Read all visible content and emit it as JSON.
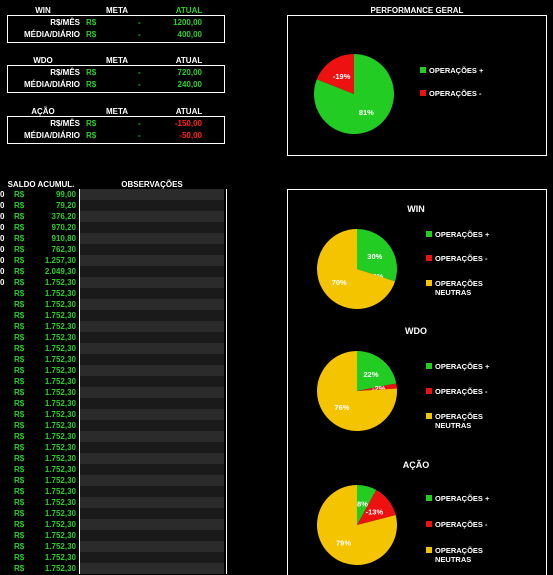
{
  "win_table": {
    "title": "WIN",
    "col_meta": "META",
    "col_atual": "ATUAL",
    "rows": [
      {
        "label": "R$/MÊS",
        "cur": "R$",
        "meta": "-",
        "atual": "1200,00"
      },
      {
        "label": "MÉDIA/DIÁRIO",
        "cur": "R$",
        "meta": "-",
        "atual": "400,00"
      }
    ]
  },
  "wdo_table": {
    "title": "WDO",
    "col_meta": "META",
    "col_atual": "ATUAL",
    "rows": [
      {
        "label": "R$/MÊS",
        "cur": "R$",
        "meta": "-",
        "atual": "720,00"
      },
      {
        "label": "MÉDIA/DIÁRIO",
        "cur": "R$",
        "meta": "-",
        "atual": "240,00"
      }
    ]
  },
  "acao_table": {
    "title": "AÇÃO",
    "col_meta": "META",
    "col_atual": "ATUAL",
    "rows": [
      {
        "label": "R$/MÊS",
        "cur": "R$",
        "meta": "-",
        "atual": "-150,00"
      },
      {
        "label": "MÉDIA/DIÁRIO",
        "cur": "R$",
        "meta": "-",
        "atual": "-50,00"
      }
    ]
  },
  "balance": {
    "header_saldo": "SALDO ACUMUL.",
    "header_obs": "OBSERVAÇÕES",
    "currency": "R$",
    "rows": [
      {
        "idx": "0",
        "value": "99,00"
      },
      {
        "idx": "0",
        "value": "79,20"
      },
      {
        "idx": "0",
        "value": "376,20"
      },
      {
        "idx": "0",
        "value": "970,20"
      },
      {
        "idx": "0",
        "value": "910,80"
      },
      {
        "idx": "0",
        "value": "762,30"
      },
      {
        "idx": "0",
        "value": "1.257,30"
      },
      {
        "idx": "0",
        "value": "2.049,30"
      },
      {
        "idx": "0",
        "value": "1.752,30"
      },
      {
        "idx": "",
        "value": "1.752,30"
      },
      {
        "idx": "",
        "value": "1.752,30"
      },
      {
        "idx": "",
        "value": "1.752,30"
      },
      {
        "idx": "",
        "value": "1.752,30"
      },
      {
        "idx": "",
        "value": "1.752,30"
      },
      {
        "idx": "",
        "value": "1.752,30"
      },
      {
        "idx": "",
        "value": "1.752,30"
      },
      {
        "idx": "",
        "value": "1.752,30"
      },
      {
        "idx": "",
        "value": "1.752,30"
      },
      {
        "idx": "",
        "value": "1.752,30"
      },
      {
        "idx": "",
        "value": "1.752,30"
      },
      {
        "idx": "",
        "value": "1.752,30"
      },
      {
        "idx": "",
        "value": "1.752,30"
      },
      {
        "idx": "",
        "value": "1.752,30"
      },
      {
        "idx": "",
        "value": "1.752,30"
      },
      {
        "idx": "",
        "value": "1.752,30"
      },
      {
        "idx": "",
        "value": "1.752,30"
      },
      {
        "idx": "",
        "value": "1.752,30"
      },
      {
        "idx": "",
        "value": "1.752,30"
      },
      {
        "idx": "",
        "value": "1.752,30"
      },
      {
        "idx": "",
        "value": "1.752,30"
      },
      {
        "idx": "",
        "value": "1.752,30"
      },
      {
        "idx": "",
        "value": "1.752,30"
      },
      {
        "idx": "",
        "value": "1.752,30"
      },
      {
        "idx": "",
        "value": "1.752,30"
      },
      {
        "idx": "",
        "value": "1.752,30"
      }
    ]
  },
  "colors": {
    "green": "#22cc22",
    "red": "#ee1111",
    "yellow": "#f5c400"
  },
  "performance": {
    "title": "PERFORMANCE GERAL",
    "chart": {
      "type": "pie",
      "slices": [
        {
          "label": "81%",
          "value": 81,
          "color": "#22cc22"
        },
        {
          "label": "-19%",
          "value": 19,
          "color": "#ee1111"
        }
      ]
    },
    "legend": [
      {
        "label": "OPERAÇÕES +",
        "color": "#22cc22"
      },
      {
        "label": "OPERAÇÕES -",
        "color": "#ee1111"
      }
    ]
  },
  "chart_data": [
    {
      "type": "pie",
      "title": "PERFORMANCE GERAL",
      "categories": [
        "OPERAÇÕES +",
        "OPERAÇÕES -"
      ],
      "values": [
        81,
        -19
      ]
    },
    {
      "type": "pie",
      "title": "WIN",
      "categories": [
        "OPERAÇÕES +",
        "OPERAÇÕES -",
        "OPERAÇÕES NEUTRAS"
      ],
      "values": [
        30,
        0,
        70
      ]
    },
    {
      "type": "pie",
      "title": "WDO",
      "categories": [
        "OPERAÇÕES +",
        "OPERAÇÕES -",
        "OPERAÇÕES NEUTRAS"
      ],
      "values": [
        22,
        -2,
        76
      ]
    },
    {
      "type": "pie",
      "title": "AÇÃO",
      "categories": [
        "OPERAÇÕES +",
        "OPERAÇÕES -",
        "OPERAÇÕES NEUTRAS"
      ],
      "values": [
        8,
        -13,
        79
      ]
    }
  ],
  "asset_charts": [
    {
      "title": "WIN",
      "slices": [
        {
          "label": "30%",
          "value": 30,
          "color": "#22cc22"
        },
        {
          "label": "0%",
          "value": 0,
          "color": "#ee1111"
        },
        {
          "label": "70%",
          "value": 70,
          "color": "#f5c400"
        }
      ],
      "legend": [
        {
          "label": "OPERAÇÕES +",
          "color": "#22cc22"
        },
        {
          "label": "OPERAÇÕES -",
          "color": "#ee1111"
        },
        {
          "label": "OPERAÇÕES NEUTRAS",
          "color": "#f5c400"
        }
      ]
    },
    {
      "title": "WDO",
      "slices": [
        {
          "label": "22%",
          "value": 22,
          "color": "#22cc22"
        },
        {
          "label": "-2%",
          "value": 2,
          "color": "#ee1111"
        },
        {
          "label": "76%",
          "value": 76,
          "color": "#f5c400"
        }
      ],
      "legend": [
        {
          "label": "OPERAÇÕES +",
          "color": "#22cc22"
        },
        {
          "label": "OPERAÇÕES -",
          "color": "#ee1111"
        },
        {
          "label": "OPERAÇÕES NEUTRAS",
          "color": "#f5c400"
        }
      ]
    },
    {
      "title": "AÇÃO",
      "slices": [
        {
          "label": "8%",
          "value": 8,
          "color": "#22cc22"
        },
        {
          "label": "-13%",
          "value": 13,
          "color": "#ee1111"
        },
        {
          "label": "79%",
          "value": 79,
          "color": "#f5c400"
        }
      ],
      "legend": [
        {
          "label": "OPERAÇÕES +",
          "color": "#22cc22"
        },
        {
          "label": "OPERAÇÕES -",
          "color": "#ee1111"
        },
        {
          "label": "OPERAÇÕES NEUTRAS",
          "color": "#f5c400"
        }
      ]
    }
  ]
}
